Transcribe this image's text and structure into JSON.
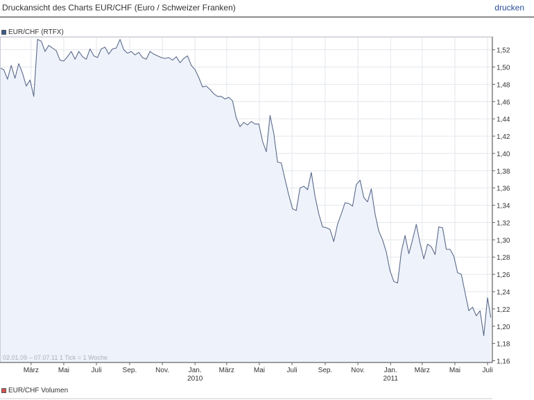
{
  "header": {
    "title": "Druckansicht des Charts EUR/CHF (Euro / Schweizer Franken)",
    "print_label": "drucken"
  },
  "legend": {
    "price_label": "EUR/CHF (RTFX)",
    "price_color": "#3b5a8f",
    "volume_label": "EUR/CHF Volumen",
    "volume_color": "#d9534f"
  },
  "chart_info": "02.01.09 – 07.07.11   1 Tick = 1 Woche",
  "chart_data": {
    "type": "area",
    "title": "Druckansicht des Charts EUR/CHF (Euro / Schweizer Franken)",
    "series": [
      {
        "name": "EUR/CHF (RTFX)",
        "color": "#5a6a8a",
        "fill": "#eef2fa",
        "points": [
          [
            "2009-01-02",
            1.499
          ],
          [
            "2009-01-09",
            1.497
          ],
          [
            "2009-01-16",
            1.486
          ],
          [
            "2009-01-23",
            1.502
          ],
          [
            "2009-01-30",
            1.487
          ],
          [
            "2009-02-06",
            1.504
          ],
          [
            "2009-02-13",
            1.493
          ],
          [
            "2009-02-20",
            1.478
          ],
          [
            "2009-02-27",
            1.485
          ],
          [
            "2009-03-06",
            1.466
          ],
          [
            "2009-03-13",
            1.532
          ],
          [
            "2009-03-20",
            1.53
          ],
          [
            "2009-03-27",
            1.518
          ],
          [
            "2009-04-03",
            1.525
          ],
          [
            "2009-04-10",
            1.522
          ],
          [
            "2009-04-17",
            1.519
          ],
          [
            "2009-04-24",
            1.508
          ],
          [
            "2009-05-01",
            1.507
          ],
          [
            "2009-05-08",
            1.512
          ],
          [
            "2009-05-15",
            1.518
          ],
          [
            "2009-05-22",
            1.509
          ],
          [
            "2009-05-29",
            1.518
          ],
          [
            "2009-06-05",
            1.512
          ],
          [
            "2009-06-12",
            1.509
          ],
          [
            "2009-06-19",
            1.521
          ],
          [
            "2009-06-26",
            1.513
          ],
          [
            "2009-07-03",
            1.511
          ],
          [
            "2009-07-10",
            1.521
          ],
          [
            "2009-07-17",
            1.523
          ],
          [
            "2009-07-24",
            1.515
          ],
          [
            "2009-07-31",
            1.521
          ],
          [
            "2009-08-07",
            1.522
          ],
          [
            "2009-08-14",
            1.532
          ],
          [
            "2009-08-21",
            1.52
          ],
          [
            "2009-08-28",
            1.516
          ],
          [
            "2009-09-04",
            1.518
          ],
          [
            "2009-09-11",
            1.514
          ],
          [
            "2009-09-18",
            1.517
          ],
          [
            "2009-09-25",
            1.511
          ],
          [
            "2009-10-02",
            1.509
          ],
          [
            "2009-10-09",
            1.518
          ],
          [
            "2009-10-16",
            1.515
          ],
          [
            "2009-10-23",
            1.513
          ],
          [
            "2009-10-30",
            1.511
          ],
          [
            "2009-11-06",
            1.51
          ],
          [
            "2009-11-13",
            1.511
          ],
          [
            "2009-11-20",
            1.508
          ],
          [
            "2009-11-27",
            1.512
          ],
          [
            "2009-12-04",
            1.505
          ],
          [
            "2009-12-11",
            1.51
          ],
          [
            "2009-12-18",
            1.513
          ],
          [
            "2009-12-25",
            1.502
          ],
          [
            "2010-01-01",
            1.497
          ],
          [
            "2010-01-08",
            1.488
          ],
          [
            "2010-01-15",
            1.477
          ],
          [
            "2010-01-22",
            1.478
          ],
          [
            "2010-01-29",
            1.474
          ],
          [
            "2010-02-05",
            1.469
          ],
          [
            "2010-02-12",
            1.466
          ],
          [
            "2010-02-19",
            1.466
          ],
          [
            "2010-02-26",
            1.463
          ],
          [
            "2010-03-05",
            1.465
          ],
          [
            "2010-03-12",
            1.461
          ],
          [
            "2010-03-19",
            1.441
          ],
          [
            "2010-03-26",
            1.431
          ],
          [
            "2010-04-02",
            1.436
          ],
          [
            "2010-04-09",
            1.433
          ],
          [
            "2010-04-16",
            1.437
          ],
          [
            "2010-04-23",
            1.434
          ],
          [
            "2010-04-30",
            1.434
          ],
          [
            "2010-05-07",
            1.414
          ],
          [
            "2010-05-14",
            1.402
          ],
          [
            "2010-05-21",
            1.444
          ],
          [
            "2010-05-28",
            1.423
          ],
          [
            "2010-06-04",
            1.39
          ],
          [
            "2010-06-11",
            1.389
          ],
          [
            "2010-06-18",
            1.37
          ],
          [
            "2010-06-25",
            1.352
          ],
          [
            "2010-07-02",
            1.336
          ],
          [
            "2010-07-09",
            1.334
          ],
          [
            "2010-07-16",
            1.36
          ],
          [
            "2010-07-23",
            1.362
          ],
          [
            "2010-07-30",
            1.358
          ],
          [
            "2010-08-06",
            1.378
          ],
          [
            "2010-08-13",
            1.35
          ],
          [
            "2010-08-20",
            1.33
          ],
          [
            "2010-08-27",
            1.315
          ],
          [
            "2010-09-03",
            1.314
          ],
          [
            "2010-09-10",
            1.312
          ],
          [
            "2010-09-17",
            1.298
          ],
          [
            "2010-09-24",
            1.318
          ],
          [
            "2010-10-01",
            1.33
          ],
          [
            "2010-10-08",
            1.343
          ],
          [
            "2010-10-15",
            1.342
          ],
          [
            "2010-10-22",
            1.339
          ],
          [
            "2010-10-29",
            1.364
          ],
          [
            "2010-11-05",
            1.369
          ],
          [
            "2010-11-12",
            1.349
          ],
          [
            "2010-11-19",
            1.344
          ],
          [
            "2010-11-26",
            1.359
          ],
          [
            "2010-12-03",
            1.33
          ],
          [
            "2010-12-10",
            1.31
          ],
          [
            "2010-12-17",
            1.3
          ],
          [
            "2010-12-24",
            1.286
          ],
          [
            "2010-12-31",
            1.264
          ],
          [
            "2011-01-07",
            1.252
          ],
          [
            "2011-01-14",
            1.25
          ],
          [
            "2011-01-21",
            1.286
          ],
          [
            "2011-01-28",
            1.305
          ],
          [
            "2011-02-04",
            1.284
          ],
          [
            "2011-02-11",
            1.3
          ],
          [
            "2011-02-18",
            1.318
          ],
          [
            "2011-02-25",
            1.296
          ],
          [
            "2011-03-04",
            1.278
          ],
          [
            "2011-03-11",
            1.295
          ],
          [
            "2011-03-18",
            1.292
          ],
          [
            "2011-03-25",
            1.283
          ],
          [
            "2011-04-01",
            1.315
          ],
          [
            "2011-04-08",
            1.314
          ],
          [
            "2011-04-15",
            1.289
          ],
          [
            "2011-04-22",
            1.289
          ],
          [
            "2011-04-29",
            1.281
          ],
          [
            "2011-05-06",
            1.262
          ],
          [
            "2011-05-13",
            1.26
          ],
          [
            "2011-05-20",
            1.239
          ],
          [
            "2011-05-27",
            1.218
          ],
          [
            "2011-06-03",
            1.222
          ],
          [
            "2011-06-10",
            1.212
          ],
          [
            "2011-06-17",
            1.218
          ],
          [
            "2011-06-24",
            1.189
          ],
          [
            "2011-07-01",
            1.233
          ],
          [
            "2011-07-07",
            1.21
          ]
        ]
      }
    ],
    "xlim": [
      "2009-01-02",
      "2011-07-10"
    ],
    "ylim": [
      1.158,
      1.535
    ],
    "y_ticks": [
      "1,16",
      "1,18",
      "1,20",
      "1,22",
      "1,24",
      "1,26",
      "1,28",
      "1,30",
      "1,32",
      "1,34",
      "1,36",
      "1,38",
      "1,40",
      "1,42",
      "1,44",
      "1,46",
      "1,48",
      "1,50",
      "1,52"
    ],
    "y_tick_values": [
      1.16,
      1.18,
      1.2,
      1.22,
      1.24,
      1.26,
      1.28,
      1.3,
      1.32,
      1.34,
      1.36,
      1.38,
      1.4,
      1.42,
      1.44,
      1.46,
      1.48,
      1.5,
      1.52
    ],
    "x_ticks": [
      {
        "date": "2009-03-01",
        "label": "März",
        "year": ""
      },
      {
        "date": "2009-05-01",
        "label": "Mai",
        "year": ""
      },
      {
        "date": "2009-07-01",
        "label": "Juli",
        "year": ""
      },
      {
        "date": "2009-09-01",
        "label": "Sep.",
        "year": ""
      },
      {
        "date": "2009-11-01",
        "label": "Nov.",
        "year": ""
      },
      {
        "date": "2010-01-01",
        "label": "Jan.",
        "year": "2010"
      },
      {
        "date": "2010-03-01",
        "label": "März",
        "year": ""
      },
      {
        "date": "2010-05-01",
        "label": "Mai",
        "year": ""
      },
      {
        "date": "2010-07-01",
        "label": "Juli",
        "year": ""
      },
      {
        "date": "2010-09-01",
        "label": "Sep.",
        "year": ""
      },
      {
        "date": "2010-11-01",
        "label": "Nov.",
        "year": ""
      },
      {
        "date": "2011-01-01",
        "label": "Jan.",
        "year": "2011"
      },
      {
        "date": "2011-03-01",
        "label": "März",
        "year": ""
      },
      {
        "date": "2011-05-01",
        "label": "Mai",
        "year": ""
      },
      {
        "date": "2011-07-01",
        "label": "Juli",
        "year": ""
      }
    ],
    "grid": true,
    "y_axis_side": "right",
    "legend_position": "top-left"
  }
}
